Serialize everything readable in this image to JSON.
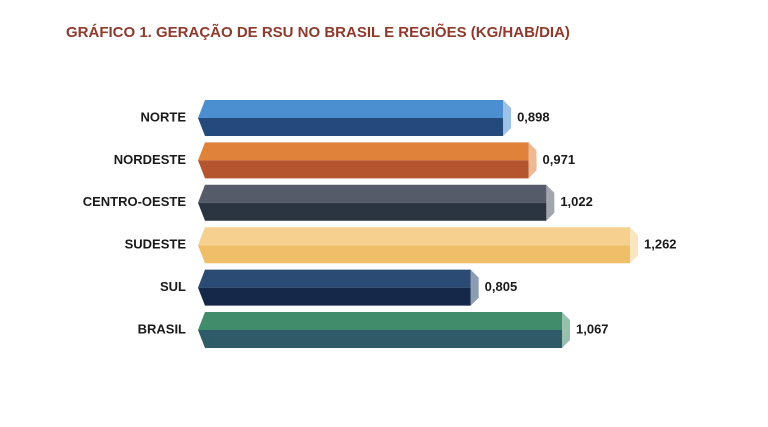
{
  "chart_data": {
    "type": "bar",
    "orientation": "horizontal",
    "title": "GRÁFICO 1. GERAÇÃO DE RSU NO BRASIL E REGIÕES (KG/HAB/DIA)",
    "categories": [
      "NORTE",
      "NORDESTE",
      "CENTRO-OESTE",
      "SUDESTE",
      "SUL",
      "BRASIL"
    ],
    "values": [
      0.898,
      0.971,
      1.022,
      1.262,
      0.805,
      1.067
    ],
    "value_labels": [
      "0,898",
      "0,971",
      "1,022",
      "1,262",
      "0,805",
      "1,067"
    ],
    "colors": [
      [
        "#4b8fd1",
        "#244a7b"
      ],
      [
        "#e0823a",
        "#b4552f"
      ],
      [
        "#565b69",
        "#2b3541"
      ],
      [
        "#f6d08f",
        "#efbe68"
      ],
      [
        "#2b4b74",
        "#162849"
      ],
      [
        "#418c6a",
        "#2f5b69"
      ]
    ]
  }
}
